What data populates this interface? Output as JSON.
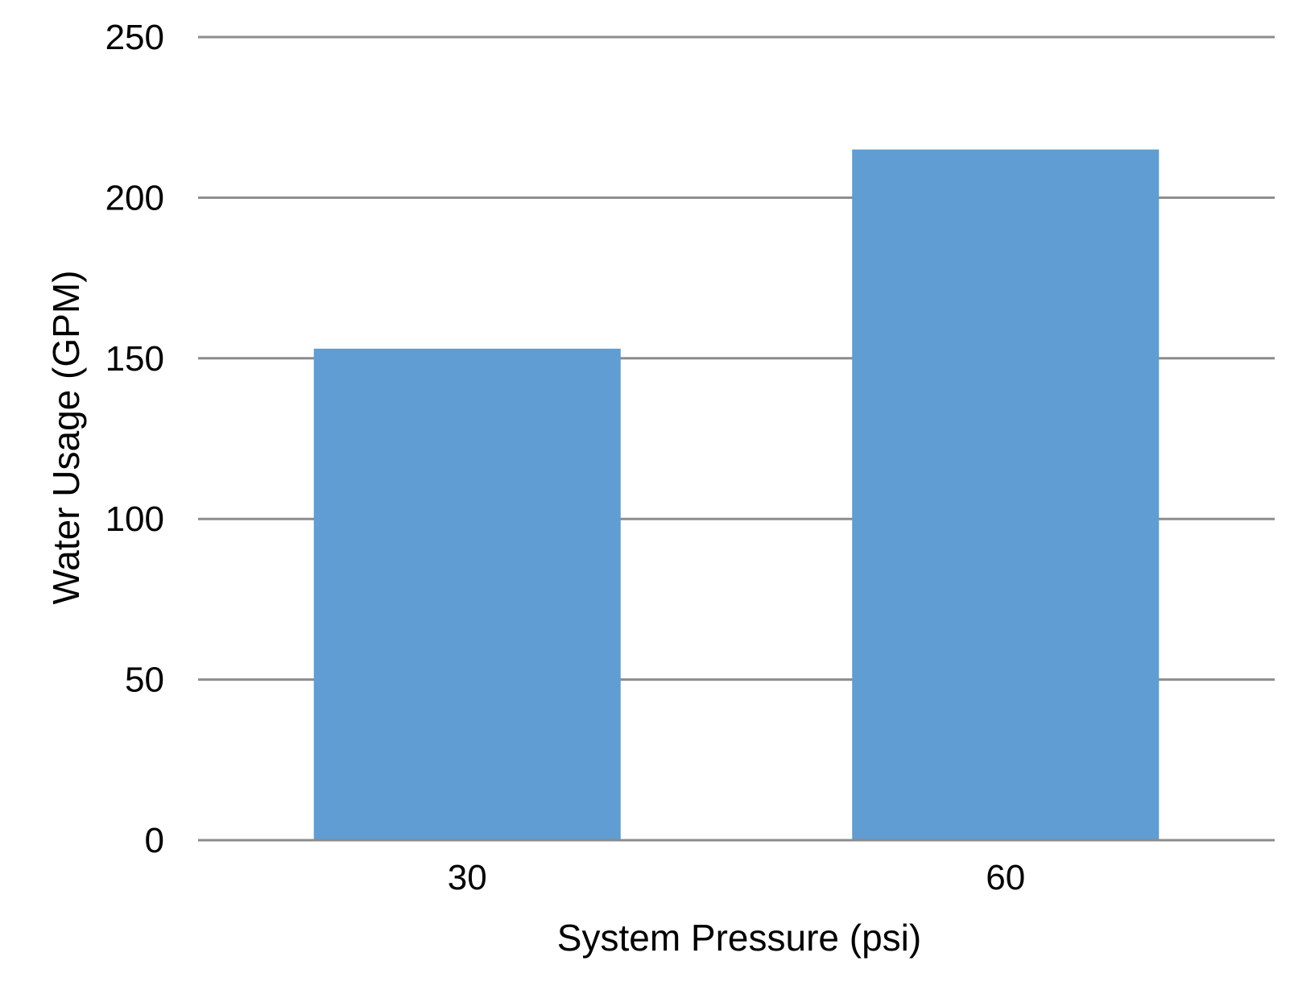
{
  "chart_data": {
    "type": "bar",
    "title": "",
    "xlabel": "System Pressure (psi)",
    "ylabel": "Water Usage (GPM)",
    "categories": [
      "30",
      "60"
    ],
    "series": [
      {
        "values": [
          153,
          215
        ],
        "color": "#5f9dd2"
      }
    ],
    "ylim": [
      0,
      250
    ],
    "yticks": [
      0,
      50,
      100,
      150,
      200,
      250
    ],
    "grid": true,
    "legend": "none"
  }
}
